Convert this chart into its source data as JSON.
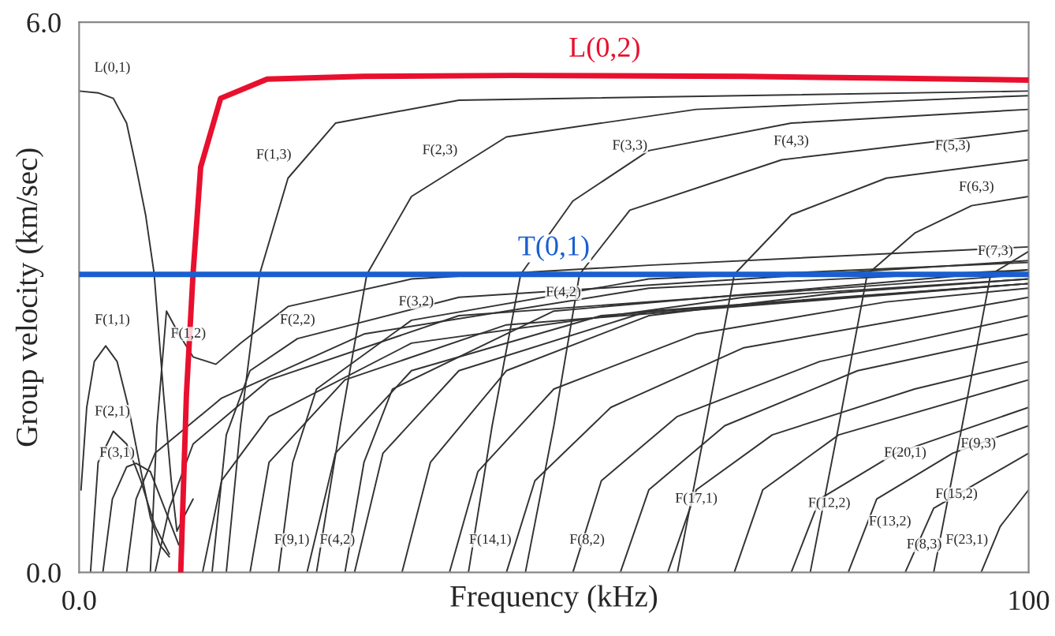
{
  "chart_data": {
    "type": "line",
    "xlabel": "Frequency (kHz)",
    "ylabel": "Group velocity (km/sec)",
    "xlim": [
      0,
      100
    ],
    "ylim": [
      0,
      6.0
    ],
    "xticks": [
      {
        "value": 0,
        "label": "0.0"
      },
      100
    ],
    "yticks": [
      {
        "value": 0,
        "label": "0.0"
      },
      {
        "value": 6.0,
        "label": "6.0"
      }
    ],
    "grid": false,
    "legend": false,
    "marker": "none",
    "line_style": "solid",
    "series": [
      {
        "name": "L(0,2)",
        "color": "#e8102e",
        "x": [
          10.7,
          11.3,
          12.0,
          12.8,
          14.9,
          19.8,
          30,
          45.7,
          70,
          85,
          100
        ],
        "values": [
          0,
          1.94,
          3.26,
          4.42,
          5.17,
          5.38,
          5.41,
          5.42,
          5.41,
          5.39,
          5.37
        ]
      },
      {
        "name": "T(0,1)",
        "color": "#1a5fd0",
        "x": [
          0,
          100
        ],
        "values": [
          3.25,
          3.25
        ]
      },
      {
        "color": "#333333",
        "x": [
          0,
          2,
          3.6,
          5,
          6,
          7,
          7.9,
          8.9,
          9.7,
          10.3,
          11,
          12
        ],
        "values": [
          5.25,
          5.23,
          5.17,
          4.9,
          4.42,
          3.9,
          3.26,
          1.94,
          1.0,
          0.45,
          0.6,
          0.8
        ]
      },
      {
        "color": "#333333",
        "x": [
          0.2,
          0.8,
          1.6,
          2.8,
          4,
          5.2,
          6.5,
          7.5,
          8.5,
          9.5
        ],
        "values": [
          0.9,
          1.8,
          2.3,
          2.47,
          2.3,
          1.8,
          1.11,
          0.6,
          0.3,
          0.17
        ]
      },
      {
        "color": "#333333",
        "x": [
          7.5,
          8.2,
          9.2,
          10.5,
          12,
          14.4,
          17,
          22,
          35,
          60,
          100
        ],
        "values": [
          0,
          1.6,
          2.85,
          2.6,
          2.35,
          2.27,
          2.5,
          2.9,
          3.2,
          3.35,
          3.55
        ]
      },
      {
        "color": "#333333",
        "x": [
          1.2,
          2,
          3.6,
          5,
          6.5,
          8,
          9.5
        ],
        "values": [
          0,
          1.2,
          1.54,
          1.4,
          1.0,
          0.5,
          0.2
        ]
      },
      {
        "color": "#333333",
        "x": [
          2.5,
          3.5,
          5,
          6,
          7.5,
          9,
          10.5
        ],
        "values": [
          0,
          0.8,
          1.15,
          1.19,
          1.1,
          0.7,
          0.3
        ]
      },
      {
        "color": "#333333",
        "x": [
          15.5,
          17,
          19,
          22,
          27,
          40,
          100
        ],
        "values": [
          0,
          1.6,
          3.25,
          4.3,
          4.9,
          5.15,
          5.25
        ]
      },
      {
        "color": "#333333",
        "x": [
          25,
          27.5,
          30.3,
          35,
          45,
          65,
          100
        ],
        "values": [
          0,
          1.6,
          3.25,
          4.1,
          4.75,
          5.05,
          5.2
        ]
      },
      {
        "color": "#333333",
        "x": [
          41,
          43.5,
          46.5,
          52,
          60,
          75,
          100
        ],
        "values": [
          0,
          1.6,
          3.25,
          4.05,
          4.6,
          4.9,
          5.05
        ]
      },
      {
        "color": "#333333",
        "x": [
          47,
          50,
          52.7,
          58,
          74,
          100
        ],
        "values": [
          0,
          1.6,
          3.25,
          3.95,
          4.5,
          4.82
        ]
      },
      {
        "color": "#333333",
        "x": [
          63,
          66,
          69,
          75,
          85,
          100
        ],
        "values": [
          0,
          1.6,
          3.25,
          3.9,
          4.3,
          4.5
        ]
      },
      {
        "color": "#333333",
        "x": [
          77,
          80,
          83,
          88,
          94,
          100
        ],
        "values": [
          0,
          1.6,
          3.25,
          3.7,
          4.0,
          4.1
        ]
      },
      {
        "color": "#333333",
        "x": [
          90,
          93,
          96,
          100
        ],
        "values": [
          0,
          1.6,
          3.25,
          3.5
        ]
      },
      {
        "color": "#333333",
        "x": [
          14,
          15.5,
          18,
          23,
          40,
          100
        ],
        "values": [
          0,
          1.5,
          2.2,
          2.55,
          3.0,
          3.4
        ]
      },
      {
        "color": "#333333",
        "x": [
          21,
          22.5,
          25,
          35,
          60,
          100
        ],
        "values": [
          0,
          1.2,
          2.0,
          2.75,
          3.2,
          3.38
        ]
      },
      {
        "color": "#333333",
        "x": [
          28,
          30,
          33,
          50,
          100
        ],
        "values": [
          0,
          1.2,
          2.0,
          2.85,
          3.3
        ]
      },
      {
        "color": "#333333",
        "x": [
          5,
          6,
          8,
          15,
          30,
          60,
          100
        ],
        "values": [
          0,
          0.8,
          1.3,
          1.9,
          2.6,
          3.1,
          3.3
        ]
      },
      {
        "color": "#333333",
        "x": [
          8,
          9.5,
          12,
          20,
          40,
          100
        ],
        "values": [
          0,
          0.7,
          1.4,
          2.1,
          2.8,
          3.25
        ]
      },
      {
        "color": "#333333",
        "x": [
          13,
          15,
          20,
          35,
          70,
          100
        ],
        "values": [
          0,
          1.0,
          1.7,
          2.5,
          3.0,
          3.2
        ]
      },
      {
        "color": "#333333",
        "x": [
          18,
          20,
          28,
          45,
          100
        ],
        "values": [
          0,
          1.2,
          2.1,
          2.7,
          3.15
        ]
      },
      {
        "color": "#333333",
        "x": [
          24,
          27,
          35,
          55,
          100
        ],
        "values": [
          0,
          1.3,
          2.2,
          2.8,
          3.15
        ]
      },
      {
        "color": "#333333",
        "x": [
          29,
          32,
          40,
          60,
          100
        ],
        "values": [
          0,
          1.3,
          2.2,
          2.85,
          3.15
        ]
      },
      {
        "color": "#333333",
        "x": [
          34,
          37,
          45,
          60,
          80,
          100
        ],
        "values": [
          0,
          1.2,
          2.2,
          2.8,
          3.05,
          3.2
        ]
      },
      {
        "color": "#333333",
        "x": [
          39,
          42,
          50,
          65,
          85,
          100
        ],
        "values": [
          0,
          1.1,
          2.0,
          2.6,
          2.95,
          3.1
        ]
      },
      {
        "color": "#333333",
        "x": [
          45,
          48,
          56,
          70,
          100
        ],
        "values": [
          0,
          1.0,
          1.8,
          2.45,
          3.0
        ]
      },
      {
        "color": "#333333",
        "x": [
          52,
          55,
          63,
          78,
          100
        ],
        "values": [
          0,
          1.0,
          1.7,
          2.3,
          2.8
        ]
      },
      {
        "color": "#333333",
        "x": [
          57,
          60,
          68,
          82,
          100
        ],
        "values": [
          0,
          0.9,
          1.6,
          2.2,
          2.6
        ]
      },
      {
        "color": "#333333",
        "x": [
          62,
          65,
          73,
          88,
          100
        ],
        "values": [
          0,
          0.9,
          1.5,
          2.0,
          2.3
        ]
      },
      {
        "color": "#333333",
        "x": [
          69,
          72,
          80,
          100
        ],
        "values": [
          0,
          0.9,
          1.5,
          2.1
        ]
      },
      {
        "color": "#333333",
        "x": [
          75,
          78,
          86,
          100
        ],
        "values": [
          0,
          0.8,
          1.3,
          1.8
        ]
      },
      {
        "color": "#333333",
        "x": [
          81,
          84,
          92,
          100
        ],
        "values": [
          0,
          0.8,
          1.3,
          1.6
        ]
      },
      {
        "color": "#333333",
        "x": [
          87,
          90,
          100
        ],
        "values": [
          0,
          0.7,
          1.3
        ]
      },
      {
        "color": "#333333",
        "x": [
          95,
          97,
          100
        ],
        "values": [
          0,
          0.5,
          0.9
        ]
      }
    ],
    "annotations": [
      {
        "text": "L(0,1)",
        "x": 3.5,
        "y": 5.5
      },
      {
        "text": "F(1,1)",
        "x": 3.5,
        "y": 2.75
      },
      {
        "text": "F(2,1)",
        "x": 3.5,
        "y": 1.75
      },
      {
        "text": "F(3,1)",
        "x": 4.0,
        "y": 1.3
      },
      {
        "text": "F(1,2)",
        "x": 11.5,
        "y": 2.6
      },
      {
        "text": "F(2,2)",
        "x": 23,
        "y": 2.75
      },
      {
        "text": "F(3,2)",
        "x": 35.5,
        "y": 2.95
      },
      {
        "text": "F(4,2)",
        "x": 51,
        "y": 3.05
      },
      {
        "text": "F(1,3)",
        "x": 20.5,
        "y": 4.55
      },
      {
        "text": "F(2,3)",
        "x": 38,
        "y": 4.6
      },
      {
        "text": "F(3,3)",
        "x": 58,
        "y": 4.65
      },
      {
        "text": "F(4,3)",
        "x": 75,
        "y": 4.7
      },
      {
        "text": "F(5,3)",
        "x": 92,
        "y": 4.65
      },
      {
        "text": "F(6,3)",
        "x": 94.5,
        "y": 4.2
      },
      {
        "text": "F(7,3)",
        "x": 96.5,
        "y": 3.5
      },
      {
        "text": "F(9,1)",
        "x": 22.4,
        "y": 0.35
      },
      {
        "text": "F(4,2)",
        "x": 27.2,
        "y": 0.35
      },
      {
        "text": "F(14,1)",
        "x": 43.3,
        "y": 0.35
      },
      {
        "text": "F(8,2)",
        "x": 53.5,
        "y": 0.35
      },
      {
        "text": "F(17,1)",
        "x": 65,
        "y": 0.8
      },
      {
        "text": "F(12,2)",
        "x": 79,
        "y": 0.75
      },
      {
        "text": "F(13,2)",
        "x": 85.4,
        "y": 0.55
      },
      {
        "text": "F(20,1)",
        "x": 87,
        "y": 1.3
      },
      {
        "text": "F(8,3)",
        "x": 89,
        "y": 0.3
      },
      {
        "text": "F(15,2)",
        "x": 92.4,
        "y": 0.85
      },
      {
        "text": "F(9,3)",
        "x": 94.7,
        "y": 1.4
      },
      {
        "text": "F(23,1)",
        "x": 93.5,
        "y": 0.35
      }
    ]
  }
}
